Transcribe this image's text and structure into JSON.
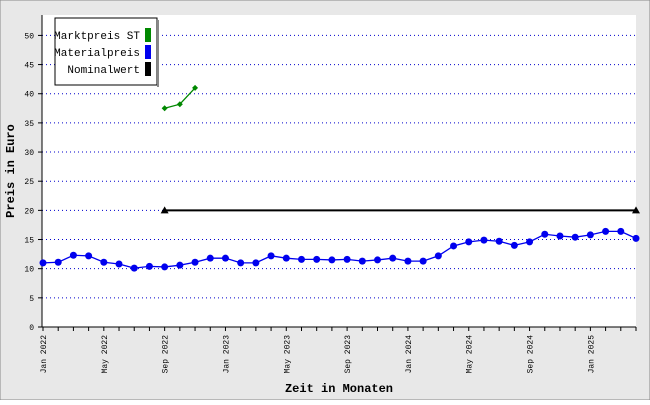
{
  "chart_data": {
    "type": "line",
    "ylabel": "Preis in Euro",
    "xlabel": "Zeit in Monaten",
    "categories": [
      "Jan 2022",
      null,
      null,
      null,
      "May 2022",
      null,
      null,
      null,
      "Sep 2022",
      null,
      null,
      null,
      "Jan 2023",
      null,
      null,
      null,
      "May 2023",
      null,
      null,
      null,
      "Sep 2023",
      null,
      null,
      null,
      "Jan 2024",
      null,
      null,
      null,
      "May 2024",
      null,
      null,
      null,
      "Sep 2024",
      null,
      null,
      null,
      "Jan 2025",
      null,
      null,
      null
    ],
    "series": [
      {
        "name": "Marktpreis ST",
        "color": "#008800",
        "marker": "diamond",
        "values": [
          null,
          null,
          null,
          null,
          null,
          null,
          null,
          null,
          37.5,
          38.2,
          41.0,
          null,
          null,
          null,
          null,
          null,
          null,
          null,
          null,
          null,
          null,
          null,
          null,
          null,
          null,
          null,
          null,
          null,
          null,
          null,
          null,
          null,
          null,
          null,
          null,
          null,
          null,
          null,
          null,
          null
        ]
      },
      {
        "name": "Materialpreis",
        "color": "#0000ee",
        "marker": "circle",
        "values": [
          11.0,
          11.1,
          12.3,
          12.2,
          11.1,
          10.8,
          10.1,
          10.4,
          10.3,
          10.6,
          11.1,
          11.8,
          11.8,
          11.0,
          11.0,
          12.2,
          11.8,
          11.6,
          11.6,
          11.5,
          11.6,
          11.3,
          11.5,
          11.8,
          11.3,
          11.3,
          12.2,
          13.9,
          14.6,
          14.9,
          14.7,
          14.0,
          14.6,
          15.9,
          15.6,
          15.4,
          15.8,
          16.4,
          16.4,
          15.2
        ]
      },
      {
        "name": "Nominalwert",
        "color": "#000000",
        "marker": "triangle-ends",
        "values": [
          null,
          null,
          null,
          null,
          null,
          null,
          null,
          null,
          20,
          20,
          20,
          20,
          20,
          20,
          20,
          20,
          20,
          20,
          20,
          20,
          20,
          20,
          20,
          20,
          20,
          20,
          20,
          20,
          20,
          20,
          20,
          20,
          20,
          20,
          20,
          20,
          20,
          20,
          20,
          20
        ]
      }
    ],
    "ylim": [
      0,
      53.5
    ],
    "yticks": [
      0,
      5,
      10,
      15,
      20,
      25,
      30,
      35,
      40,
      45,
      50
    ],
    "grid": true,
    "legend": "top-left"
  }
}
